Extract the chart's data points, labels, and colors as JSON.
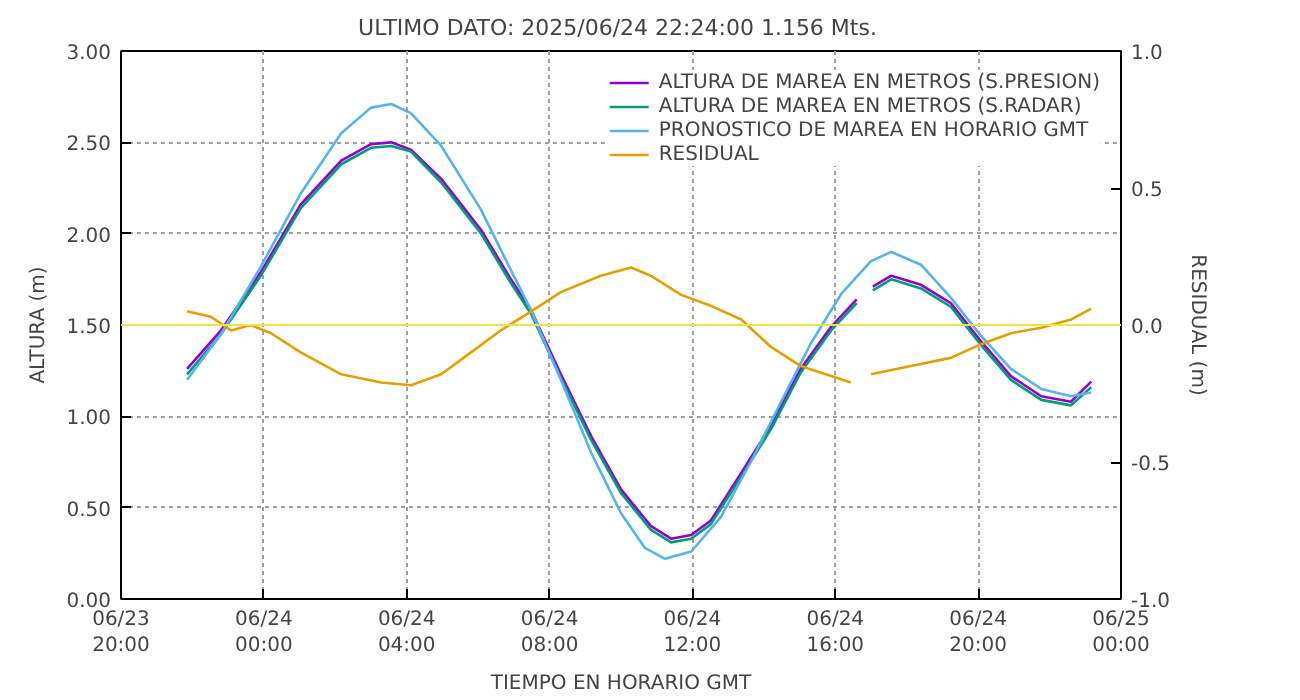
{
  "chart_data": {
    "type": "line",
    "title": "ULTIMO DATO: 2025/06/24  22:24:00 1.156 Mts.",
    "xlabel": "TIEMPO EN HORARIO GMT",
    "ylabel": "ALTURA (m)",
    "y2label": "RESIDUAL (m)",
    "xlim": [
      "2025-06-23T20:00",
      "2025-06-25T00:00"
    ],
    "xticks": [
      {
        "value": "2025-06-23T20:00",
        "label": "06/23\n20:00"
      },
      {
        "value": "2025-06-24T00:00",
        "label": "06/24\n00:00"
      },
      {
        "value": "2025-06-24T04:00",
        "label": "06/24\n04:00"
      },
      {
        "value": "2025-06-24T08:00",
        "label": "06/24\n08:00"
      },
      {
        "value": "2025-06-24T12:00",
        "label": "06/24\n12:00"
      },
      {
        "value": "2025-06-24T16:00",
        "label": "06/24\n16:00"
      },
      {
        "value": "2025-06-24T20:00",
        "label": "06/24\n20:00"
      },
      {
        "value": "2025-06-25T00:00",
        "label": "06/25\n00:00"
      }
    ],
    "ylim": [
      0,
      3
    ],
    "yticks": [
      {
        "value": 0,
        "label": "0.00"
      },
      {
        "value": 0.5,
        "label": "0.50"
      },
      {
        "value": 1,
        "label": "1.00"
      },
      {
        "value": 1.5,
        "label": "1.50"
      },
      {
        "value": 2,
        "label": "2.00"
      },
      {
        "value": 2.5,
        "label": "2.50"
      },
      {
        "value": 3,
        "label": "3.00"
      }
    ],
    "y2lim": [
      -1,
      1
    ],
    "y2ticks": [
      {
        "value": -1,
        "label": "-1.0"
      },
      {
        "value": -0.5,
        "label": "-0.5"
      },
      {
        "value": 0,
        "label": "0.0"
      },
      {
        "value": 0.5,
        "label": "0.5"
      },
      {
        "value": 1,
        "label": "1.0"
      }
    ],
    "grid": true,
    "legend": "top right",
    "line_style": "solid",
    "ref_lines": [
      {
        "axis": "y2",
        "value": 0,
        "label": null,
        "color": "#f0e442"
      }
    ],
    "series": [
      {
        "name": "ALTURA DE MAREA EN METROS (S.PRESION)",
        "color": "#9400d3",
        "x": [
          "2025-06-23T21:51",
          "2025-06-23T22:48",
          "2025-06-23T23:55",
          "2025-06-24T01:02",
          "2025-06-24T02:10",
          "2025-06-24T03:00",
          "2025-06-24T03:34",
          "2025-06-24T04:07",
          "2025-06-24T04:58",
          "2025-06-24T06:05",
          "2025-06-24T06:55",
          "2025-06-24T07:29",
          "2025-06-24T08:19",
          "2025-06-24T09:10",
          "2025-06-24T10:00",
          "2025-06-24T10:50",
          "2025-06-24T11:24",
          "2025-06-24T11:58",
          "2025-06-24T12:31",
          "2025-06-24T13:22",
          "2025-06-24T14:12",
          "2025-06-24T15:02",
          "2025-06-24T15:53",
          "2025-06-24T16:36",
          "2025-06-24T16:50",
          "2025-06-24T17:03",
          "2025-06-24T17:34",
          "2025-06-24T18:24",
          "2025-06-24T19:14",
          "2025-06-24T20:05",
          "2025-06-24T20:55",
          "2025-06-24T21:46",
          "2025-06-24T22:36",
          "2025-06-24T23:10"
        ],
        "values": [
          1.26,
          1.47,
          1.79,
          2.16,
          2.4,
          2.49,
          2.5,
          2.46,
          2.3,
          2.02,
          1.75,
          1.58,
          1.23,
          0.89,
          0.6,
          0.4,
          0.33,
          0.35,
          0.43,
          0.69,
          0.95,
          1.26,
          1.49,
          1.64,
          null,
          1.71,
          1.77,
          1.72,
          1.62,
          1.41,
          1.22,
          1.11,
          1.08,
          1.19
        ]
      },
      {
        "name": "ALTURA DE MAREA EN METROS (S.RADAR)",
        "color": "#009e73",
        "x": [
          "2025-06-23T21:51",
          "2025-06-23T22:48",
          "2025-06-23T23:55",
          "2025-06-24T01:02",
          "2025-06-24T02:10",
          "2025-06-24T03:00",
          "2025-06-24T03:34",
          "2025-06-24T04:07",
          "2025-06-24T04:58",
          "2025-06-24T06:05",
          "2025-06-24T06:55",
          "2025-06-24T07:29",
          "2025-06-24T08:19",
          "2025-06-24T09:10",
          "2025-06-24T10:00",
          "2025-06-24T10:50",
          "2025-06-24T11:24",
          "2025-06-24T11:58",
          "2025-06-24T12:31",
          "2025-06-24T13:22",
          "2025-06-24T14:12",
          "2025-06-24T15:02",
          "2025-06-24T15:53",
          "2025-06-24T16:36",
          "2025-06-24T16:50",
          "2025-06-24T17:03",
          "2025-06-24T17:34",
          "2025-06-24T18:24",
          "2025-06-24T19:14",
          "2025-06-24T20:05",
          "2025-06-24T20:55",
          "2025-06-24T21:46",
          "2025-06-24T22:36",
          "2025-06-24T23:10"
        ],
        "values": [
          1.23,
          1.45,
          1.77,
          2.14,
          2.38,
          2.47,
          2.48,
          2.45,
          2.28,
          2.0,
          1.73,
          1.56,
          1.21,
          0.87,
          0.58,
          0.38,
          0.31,
          0.33,
          0.41,
          0.67,
          0.93,
          1.24,
          1.47,
          1.62,
          null,
          1.69,
          1.75,
          1.7,
          1.6,
          1.39,
          1.2,
          1.09,
          1.06,
          1.16
        ]
      },
      {
        "name": "PRONOSTICO DE MAREA EN HORARIO GMT",
        "color": "#56b4e9",
        "x": [
          "2025-06-23T21:51",
          "2025-06-23T22:48",
          "2025-06-23T23:55",
          "2025-06-24T01:02",
          "2025-06-24T02:10",
          "2025-06-24T03:00",
          "2025-06-24T03:34",
          "2025-06-24T04:07",
          "2025-06-24T04:58",
          "2025-06-24T06:05",
          "2025-06-24T06:55",
          "2025-06-24T07:29",
          "2025-06-24T08:19",
          "2025-06-24T09:10",
          "2025-06-24T10:00",
          "2025-06-24T10:40",
          "2025-06-24T11:14",
          "2025-06-24T11:58",
          "2025-06-24T12:48",
          "2025-06-24T13:38",
          "2025-06-24T14:29",
          "2025-06-24T15:19",
          "2025-06-24T16:10",
          "2025-06-24T17:00",
          "2025-06-24T17:34",
          "2025-06-24T18:24",
          "2025-06-24T19:14",
          "2025-06-24T20:05",
          "2025-06-24T20:55",
          "2025-06-24T21:46",
          "2025-06-24T22:36",
          "2025-06-24T23:10"
        ],
        "values": [
          1.2,
          1.45,
          1.82,
          2.22,
          2.55,
          2.69,
          2.71,
          2.66,
          2.48,
          2.13,
          1.8,
          1.58,
          1.2,
          0.8,
          0.47,
          0.28,
          0.22,
          0.26,
          0.45,
          0.75,
          1.08,
          1.4,
          1.67,
          1.85,
          1.9,
          1.83,
          1.65,
          1.44,
          1.26,
          1.15,
          1.11,
          1.13
        ]
      },
      {
        "name": "RESIDUAL",
        "color": "#e69f00",
        "axis": "y2",
        "x": [
          "2025-06-23T21:51",
          "2025-06-23T22:31",
          "2025-06-23T23:05",
          "2025-06-23T23:38",
          "2025-06-24T00:12",
          "2025-06-24T01:02",
          "2025-06-24T02:10",
          "2025-06-24T03:17",
          "2025-06-24T04:07",
          "2025-06-24T04:58",
          "2025-06-24T05:48",
          "2025-06-24T06:38",
          "2025-06-24T07:29",
          "2025-06-24T08:19",
          "2025-06-24T09:26",
          "2025-06-24T10:17",
          "2025-06-24T10:50",
          "2025-06-24T11:41",
          "2025-06-24T12:31",
          "2025-06-24T13:22",
          "2025-06-24T14:12",
          "2025-06-24T15:02",
          "2025-06-24T16:26",
          "2025-06-24T16:45",
          "2025-06-24T17:00",
          "2025-06-24T18:07",
          "2025-06-24T19:14",
          "2025-06-24T20:05",
          "2025-06-24T20:55",
          "2025-06-24T21:46",
          "2025-06-24T22:36",
          "2025-06-24T23:10"
        ],
        "values": [
          0.05,
          0.03,
          -0.02,
          0.0,
          -0.03,
          -0.1,
          -0.18,
          -0.21,
          -0.22,
          -0.18,
          -0.1,
          -0.02,
          0.05,
          0.12,
          0.18,
          0.21,
          0.18,
          0.11,
          0.07,
          0.02,
          -0.08,
          -0.15,
          -0.21,
          null,
          -0.18,
          -0.15,
          -0.12,
          -0.07,
          -0.03,
          -0.01,
          0.02,
          0.06
        ]
      }
    ]
  }
}
